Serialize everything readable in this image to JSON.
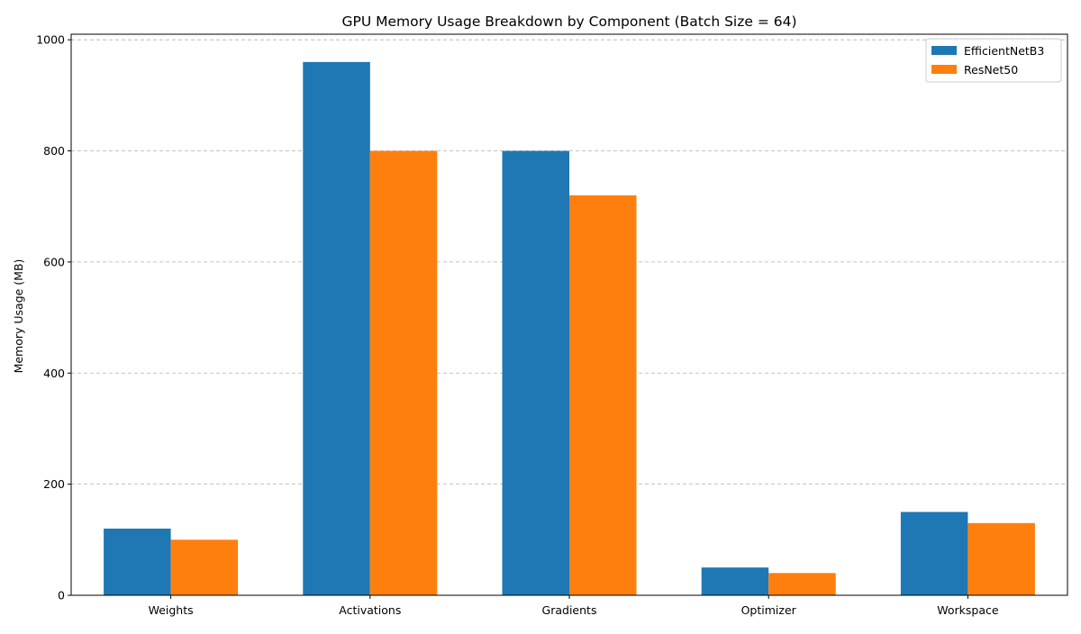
{
  "chart_data": {
    "type": "bar",
    "title": "GPU Memory Usage Breakdown by Component (Batch Size = 64)",
    "xlabel": "",
    "ylabel": "Memory Usage (MB)",
    "categories": [
      "Weights",
      "Activations",
      "Gradients",
      "Optimizer",
      "Workspace"
    ],
    "series": [
      {
        "name": "EfficientNetB3",
        "color": "#1f77b4",
        "values": [
          120,
          960,
          800,
          50,
          150
        ]
      },
      {
        "name": "ResNet50",
        "color": "#ff7f0e",
        "values": [
          100,
          800,
          720,
          40,
          130
        ]
      }
    ],
    "ylim": [
      0,
      1010
    ],
    "yticks": [
      0,
      200,
      400,
      600,
      800,
      1000
    ],
    "grid": "y-dashed",
    "legend_position": "top-right"
  }
}
